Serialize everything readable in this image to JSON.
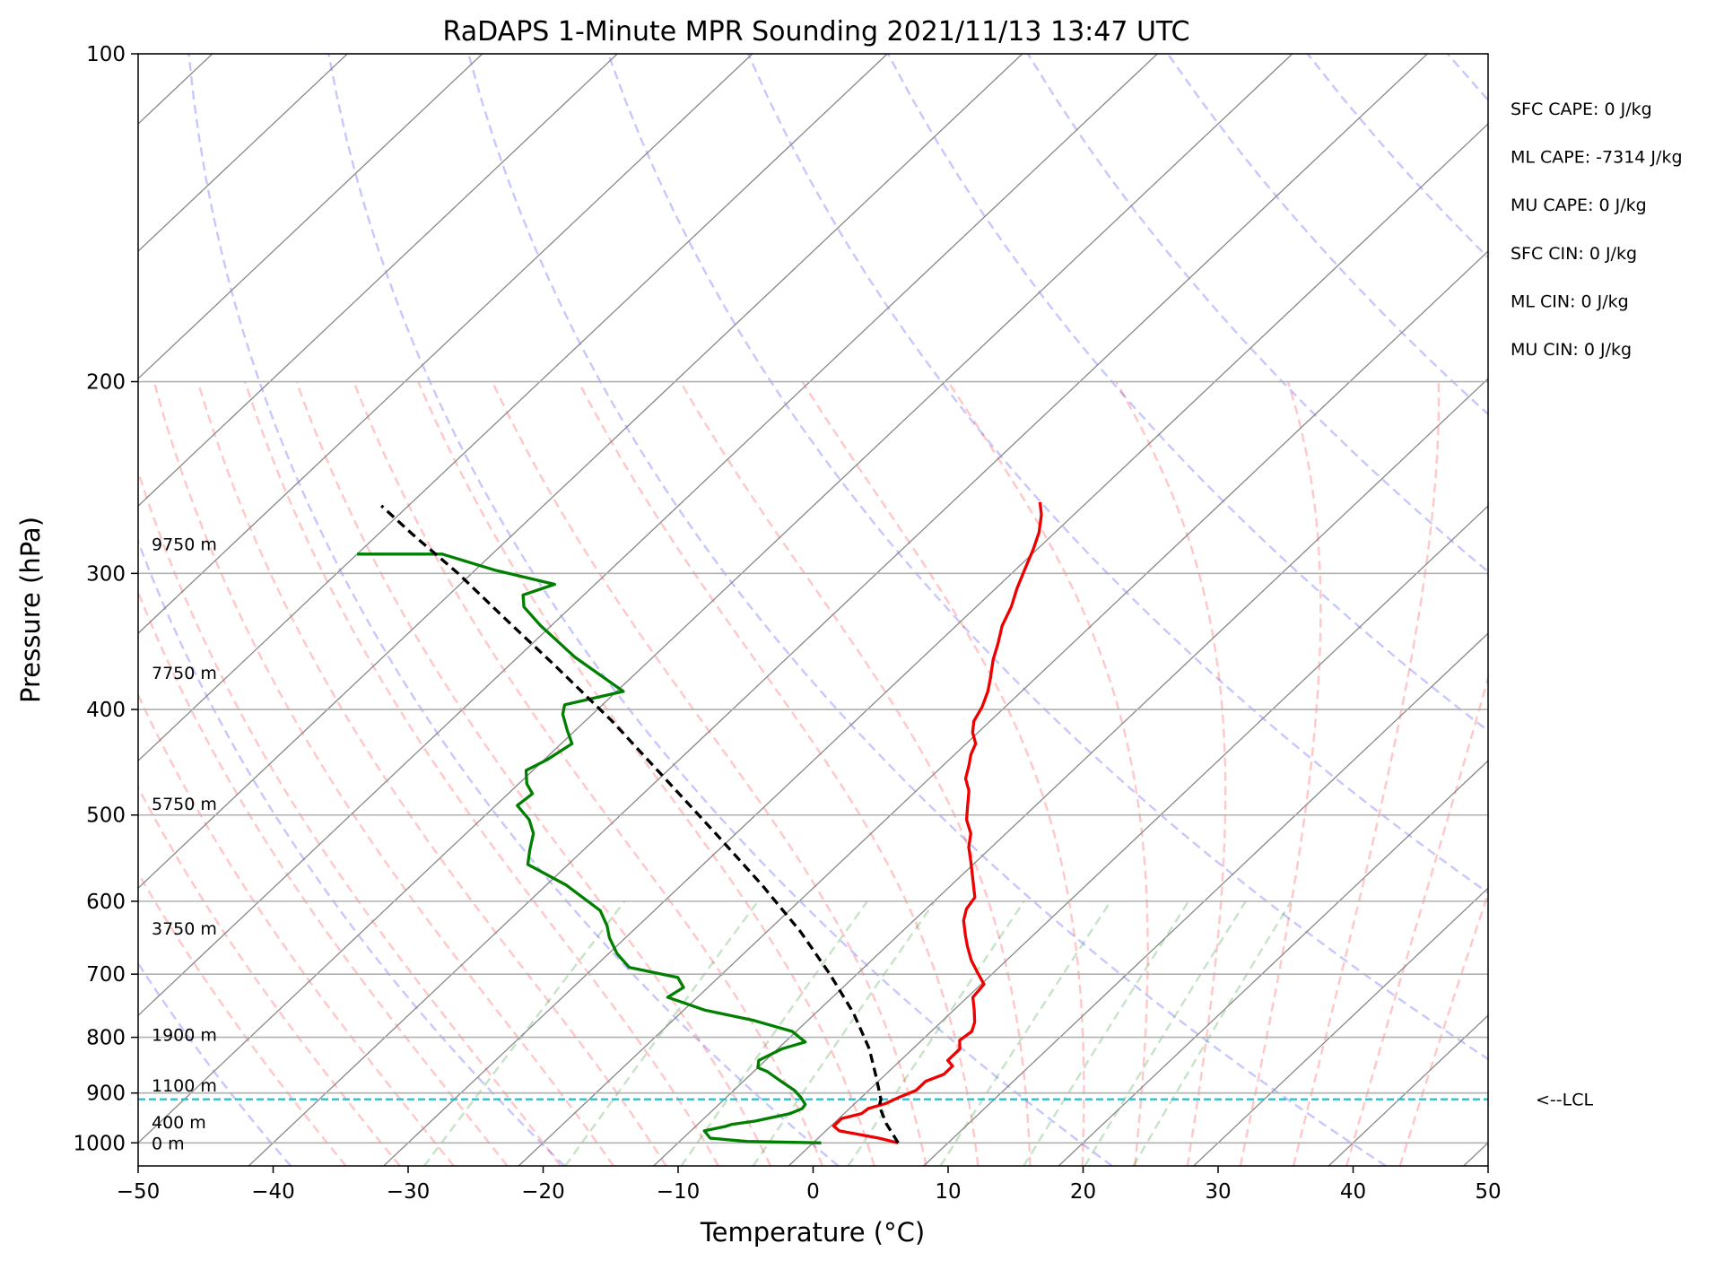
{
  "chart_data": {
    "type": "skew-t",
    "title": "RaDAPS 1-Minute MPR Sounding 2021/11/13 13:47 UTC",
    "xlabel": "Temperature (°C)",
    "ylabel": "Pressure (hPa)",
    "xlim": [
      -50,
      50
    ],
    "ylim": [
      1050,
      100
    ],
    "y_scale": "log",
    "skew_deg_per_decade": 85.5,
    "grid": true,
    "x_ticks": [
      "−50",
      "−40",
      "−30",
      "−20",
      "−10",
      "0",
      "10",
      "20",
      "30",
      "40",
      "50"
    ],
    "x_tick_values": [
      -50,
      -40,
      -30,
      -20,
      -10,
      0,
      10,
      20,
      30,
      40,
      50
    ],
    "y_ticks": [
      "100",
      "200",
      "300",
      "400",
      "500",
      "600",
      "700",
      "800",
      "900",
      "1000"
    ],
    "y_tick_values": [
      100,
      200,
      300,
      400,
      500,
      600,
      700,
      800,
      900,
      1000
    ],
    "height_labels": [
      {
        "p": 1000,
        "text": "0 m"
      },
      {
        "p": 957,
        "text": "400 m"
      },
      {
        "p": 885,
        "text": "1100 m"
      },
      {
        "p": 795,
        "text": "1900 m"
      },
      {
        "p": 635,
        "text": "3750 m"
      },
      {
        "p": 488,
        "text": "5750 m"
      },
      {
        "p": 370,
        "text": "7750 m"
      },
      {
        "p": 282,
        "text": "9750 m"
      }
    ],
    "lcl": {
      "p": 912,
      "label": "<--LCL",
      "color": "#17becf"
    },
    "indices": [
      "SFC CAPE: 0 J/kg",
      "ML CAPE: -7314 J/kg",
      "MU CAPE: 0 J/kg",
      "SFC CIN: 0 J/kg",
      "ML CIN: 0 J/kg",
      "MU CIN: 0 J/kg"
    ],
    "series": [
      {
        "name": "Temperature",
        "color": "#ee0000",
        "points": [
          [
            6.3,
            1000
          ],
          [
            4.5,
            990
          ],
          [
            1.0,
            975
          ],
          [
            0.2,
            965
          ],
          [
            0.2,
            950
          ],
          [
            1.3,
            940
          ],
          [
            1.4,
            930
          ],
          [
            2.3,
            920
          ],
          [
            2.8,
            908
          ],
          [
            3.5,
            895
          ],
          [
            3.5,
            878
          ],
          [
            4.3,
            865
          ],
          [
            4.3,
            850
          ],
          [
            3.5,
            840
          ],
          [
            3.5,
            820
          ],
          [
            2.8,
            805
          ],
          [
            3.0,
            790
          ],
          [
            2.5,
            775
          ],
          [
            1.5,
            755
          ],
          [
            0.4,
            735
          ],
          [
            0.2,
            715
          ],
          [
            -1.0,
            700
          ],
          [
            -2.6,
            680
          ],
          [
            -4.0,
            660
          ],
          [
            -5.0,
            645
          ],
          [
            -6.3,
            625
          ],
          [
            -7.0,
            610
          ],
          [
            -7.3,
            595
          ],
          [
            -8.7,
            575
          ],
          [
            -10.3,
            553
          ],
          [
            -11.7,
            535
          ],
          [
            -12.6,
            520
          ],
          [
            -14.0,
            505
          ],
          [
            -14.9,
            492
          ],
          [
            -16.1,
            475
          ],
          [
            -17.3,
            463
          ],
          [
            -18.1,
            450
          ],
          [
            -18.8,
            440
          ],
          [
            -19.3,
            430
          ],
          [
            -20.4,
            420
          ],
          [
            -21.2,
            410
          ],
          [
            -21.7,
            398
          ],
          [
            -22.5,
            385
          ],
          [
            -23.3,
            375
          ],
          [
            -24.6,
            360
          ],
          [
            -25.5,
            348
          ],
          [
            -26.6,
            335
          ],
          [
            -27.4,
            322
          ],
          [
            -28.4,
            310
          ],
          [
            -29.3,
            298
          ],
          [
            -30.3,
            285
          ],
          [
            -31.2,
            275
          ],
          [
            -32.4,
            265
          ],
          [
            -33.5,
            258
          ]
        ]
      },
      {
        "name": "Dewpoint",
        "color": "#007f00",
        "points": [
          [
            0.6,
            1000
          ],
          [
            -5.0,
            997
          ],
          [
            -8.0,
            990
          ],
          [
            -9.0,
            975
          ],
          [
            -7.8,
            966
          ],
          [
            -7.5,
            962
          ],
          [
            -6.0,
            955
          ],
          [
            -4.0,
            940
          ],
          [
            -3.5,
            930
          ],
          [
            -3.6,
            922
          ],
          [
            -4.5,
            908
          ],
          [
            -5.5,
            895
          ],
          [
            -7.0,
            880
          ],
          [
            -8.0,
            870
          ],
          [
            -9.0,
            860
          ],
          [
            -10.0,
            853
          ],
          [
            -10.5,
            840
          ],
          [
            -9.7,
            820
          ],
          [
            -8.5,
            808
          ],
          [
            -10.3,
            790
          ],
          [
            -14.0,
            772
          ],
          [
            -18.5,
            755
          ],
          [
            -22.2,
            735
          ],
          [
            -21.8,
            720
          ],
          [
            -23.0,
            705
          ],
          [
            -27.4,
            690
          ],
          [
            -29.4,
            670
          ],
          [
            -31.2,
            648
          ],
          [
            -32.3,
            632
          ],
          [
            -34.0,
            612
          ],
          [
            -38.5,
            580
          ],
          [
            -43.0,
            555
          ],
          [
            -44.0,
            538
          ],
          [
            -45.0,
            520
          ],
          [
            -46.4,
            505
          ],
          [
            -48.4,
            490
          ],
          [
            -48.2,
            478
          ],
          [
            -49.4,
            468
          ],
          [
            -50.5,
            455
          ],
          [
            -49.8,
            445
          ],
          [
            -49.2,
            430
          ],
          [
            -50.6,
            418
          ],
          [
            -52.2,
            404
          ],
          [
            -52.8,
            396
          ],
          [
            -49.5,
            385
          ],
          [
            -55.8,
            358
          ],
          [
            -60.8,
            335
          ],
          [
            -63.5,
            322
          ],
          [
            -64.5,
            314
          ],
          [
            -63.0,
            307
          ],
          [
            -68.5,
            298
          ],
          [
            -73.7,
            288
          ],
          [
            -80.0,
            288
          ]
        ]
      },
      {
        "name": "Parcel",
        "color": "#000000",
        "dashed": true,
        "points": [
          [
            6.3,
            1000
          ],
          [
            3.9,
            960
          ],
          [
            2.0,
            925
          ],
          [
            1.6,
            912
          ],
          [
            -0.5,
            870
          ],
          [
            -3.2,
            820
          ],
          [
            -7.2,
            760
          ],
          [
            -12.0,
            700
          ],
          [
            -17.5,
            640
          ],
          [
            -24.0,
            580
          ],
          [
            -31.5,
            520
          ],
          [
            -40.0,
            460
          ],
          [
            -48.0,
            410
          ],
          [
            -56.5,
            365
          ],
          [
            -64.0,
            330
          ],
          [
            -71.0,
            300
          ],
          [
            -77.5,
            276
          ],
          [
            -82.0,
            260
          ]
        ]
      }
    ]
  }
}
